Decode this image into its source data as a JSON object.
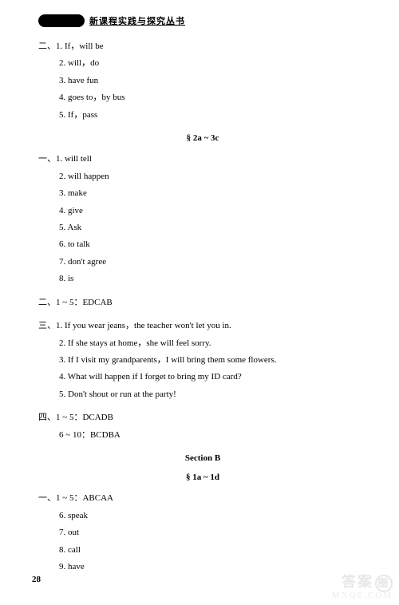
{
  "header": {
    "title": "新课程实践与探究丛书"
  },
  "group1": {
    "label": "二、",
    "items": [
      "1. If，will be",
      "2. will，do",
      "3. have fun",
      "4. goes to，by bus",
      "5. If，pass"
    ]
  },
  "heading1": "§ 2a ~ 3c",
  "group2": {
    "label": "一、",
    "items": [
      "1. will tell",
      "2. will happen",
      "3. make",
      "4. give",
      "5. Ask",
      "6. to talk",
      "7. don't agree",
      "8. is"
    ]
  },
  "group3": {
    "label": "二、",
    "items": [
      "1 ~ 5：EDCAB"
    ]
  },
  "group4": {
    "label": "三、",
    "items": [
      "1. If you wear jeans，the teacher won't let you in.",
      "2. If she stays at home，she will feel sorry.",
      "3. If I visit my grandparents，I will bring them some flowers.",
      "4. What will happen if I forget to bring my ID card?",
      "5. Don't shout or run at the party!"
    ]
  },
  "group5": {
    "label": "四、",
    "items": [
      "1 ~ 5：DCADB",
      "6 ~ 10：BCDBA"
    ]
  },
  "heading2": "Section B",
  "heading3": "§ 1a ~ 1d",
  "group6": {
    "label": "一、",
    "items": [
      "1 ~ 5：ABCAA",
      "6. speak",
      "7. out",
      "8. call",
      "9. have"
    ]
  },
  "pageNumber": "28",
  "watermark": {
    "top": "答案",
    "circle": "圈",
    "bottom": "MXQE.COM"
  }
}
